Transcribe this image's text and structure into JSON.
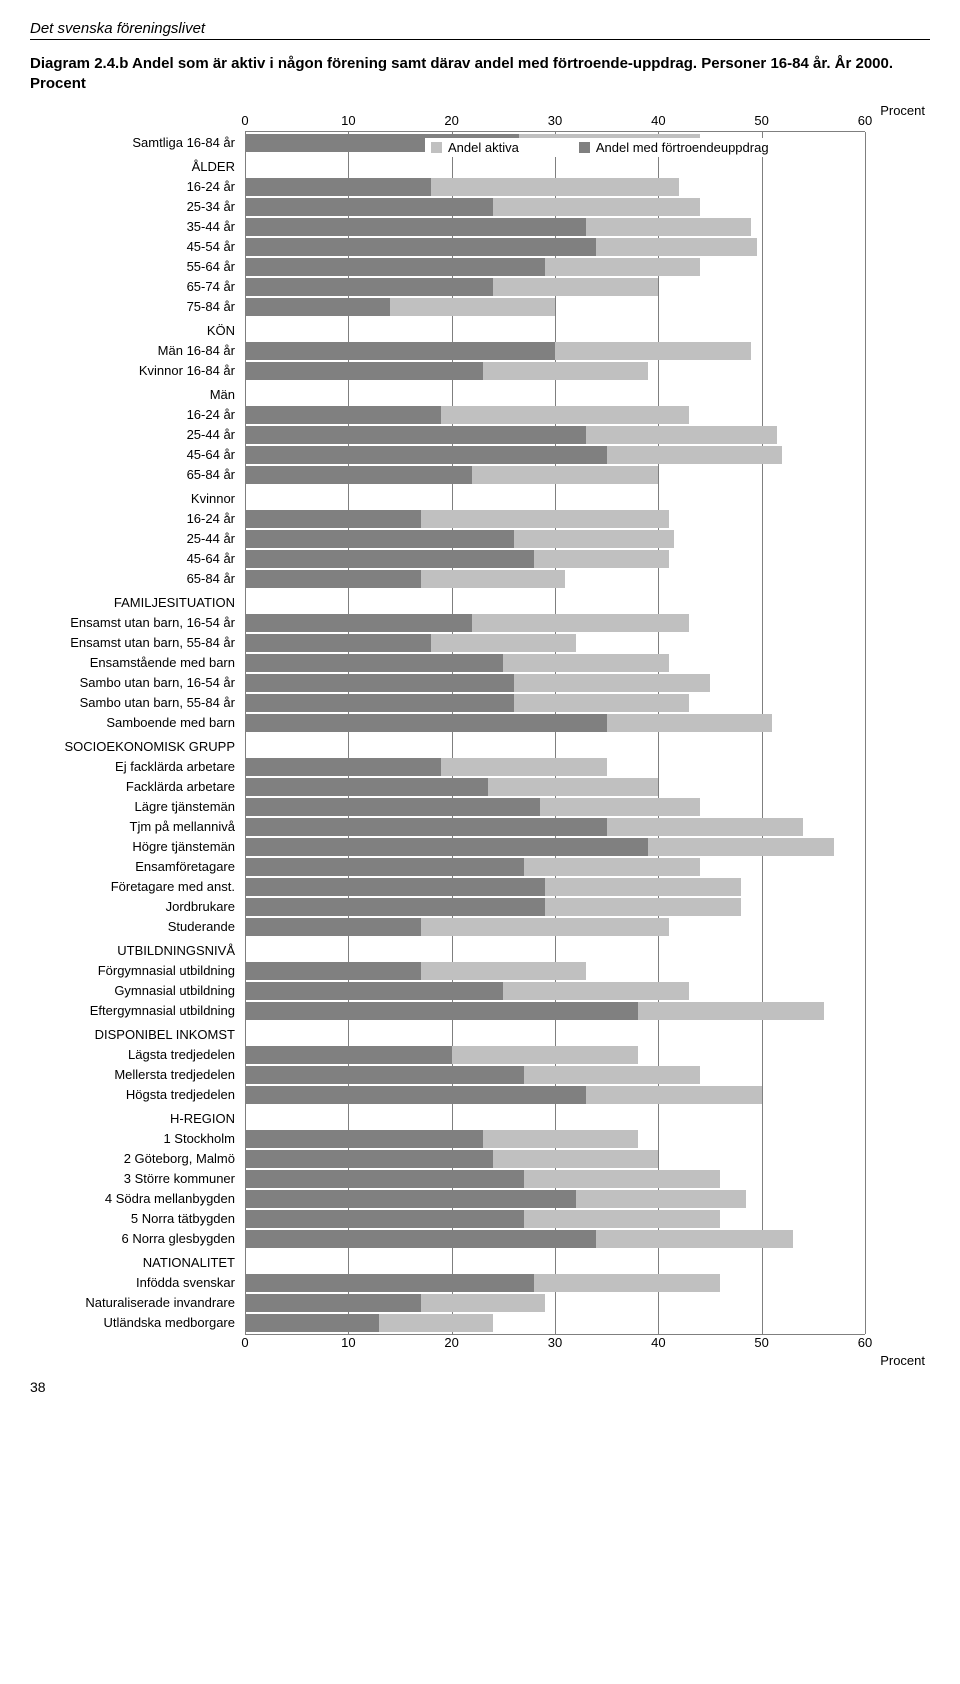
{
  "header": {
    "section": "Det svenska föreningslivet"
  },
  "title": "Diagram 2.4.b Andel som är aktiv i någon förening samt därav andel med förtroende-uppdrag. Personer 16-84 år. År 2000. Procent",
  "page_number": "38",
  "chart": {
    "type": "stacked-horizontal-bar",
    "xmin": 0,
    "xmax": 60,
    "xticks": [
      0,
      10,
      20,
      30,
      40,
      50,
      60
    ],
    "unit_top": "Procent",
    "unit_bottom": "Procent",
    "colors": {
      "aktiva": "#c0c0c0",
      "fortroende": "#808080",
      "grid": "#7f7f7f"
    },
    "legend": [
      {
        "label": "Andel aktiva",
        "color": "#c0c0c0"
      },
      {
        "label": "Andel med förtroendeuppdrag",
        "color": "#808080"
      }
    ],
    "rows": [
      {
        "type": "data",
        "label": "Samtliga 16-84 år",
        "fortroende": 26.5,
        "aktiva": 44
      },
      {
        "type": "heading",
        "label": "ÅLDER"
      },
      {
        "type": "data",
        "label": "16-24 år",
        "fortroende": 18,
        "aktiva": 42
      },
      {
        "type": "data",
        "label": "25-34 år",
        "fortroende": 24,
        "aktiva": 44
      },
      {
        "type": "data",
        "label": "35-44 år",
        "fortroende": 33,
        "aktiva": 49
      },
      {
        "type": "data",
        "label": "45-54 år",
        "fortroende": 34,
        "aktiva": 49.5
      },
      {
        "type": "data",
        "label": "55-64 år",
        "fortroende": 29,
        "aktiva": 44
      },
      {
        "type": "data",
        "label": "65-74 år",
        "fortroende": 24,
        "aktiva": 40
      },
      {
        "type": "data",
        "label": "75-84 år",
        "fortroende": 14,
        "aktiva": 30
      },
      {
        "type": "heading",
        "label": "KÖN"
      },
      {
        "type": "data",
        "label": "Män 16-84 år",
        "fortroende": 30,
        "aktiva": 49
      },
      {
        "type": "data",
        "label": "Kvinnor 16-84 år",
        "fortroende": 23,
        "aktiva": 39
      },
      {
        "type": "heading",
        "label": "Män"
      },
      {
        "type": "data",
        "label": "16-24 år",
        "fortroende": 19,
        "aktiva": 43
      },
      {
        "type": "data",
        "label": "25-44 år",
        "fortroende": 33,
        "aktiva": 51.5
      },
      {
        "type": "data",
        "label": "45-64 år",
        "fortroende": 35,
        "aktiva": 52
      },
      {
        "type": "data",
        "label": "65-84 år",
        "fortroende": 22,
        "aktiva": 40
      },
      {
        "type": "heading",
        "label": "Kvinnor"
      },
      {
        "type": "data",
        "label": "16-24 år",
        "fortroende": 17,
        "aktiva": 41
      },
      {
        "type": "data",
        "label": "25-44 år",
        "fortroende": 26,
        "aktiva": 41.5
      },
      {
        "type": "data",
        "label": "45-64 år",
        "fortroende": 28,
        "aktiva": 41
      },
      {
        "type": "data",
        "label": "65-84 år",
        "fortroende": 17,
        "aktiva": 31
      },
      {
        "type": "heading",
        "label": "FAMILJESITUATION"
      },
      {
        "type": "data",
        "label": "Ensamst utan barn, 16-54 år",
        "fortroende": 22,
        "aktiva": 43
      },
      {
        "type": "data",
        "label": "Ensamst utan barn, 55-84 år",
        "fortroende": 18,
        "aktiva": 32
      },
      {
        "type": "data",
        "label": "Ensamstående med barn",
        "fortroende": 25,
        "aktiva": 41
      },
      {
        "type": "data",
        "label": "Sambo utan barn, 16-54 år",
        "fortroende": 26,
        "aktiva": 45
      },
      {
        "type": "data",
        "label": "Sambo utan barn, 55-84 år",
        "fortroende": 26,
        "aktiva": 43
      },
      {
        "type": "data",
        "label": "Samboende med barn",
        "fortroende": 35,
        "aktiva": 51
      },
      {
        "type": "heading",
        "label": "SOCIOEKONOMISK GRUPP"
      },
      {
        "type": "data",
        "label": "Ej facklärda arbetare",
        "fortroende": 19,
        "aktiva": 35
      },
      {
        "type": "data",
        "label": "Facklärda arbetare",
        "fortroende": 23.5,
        "aktiva": 40
      },
      {
        "type": "data",
        "label": "Lägre tjänstemän",
        "fortroende": 28.5,
        "aktiva": 44
      },
      {
        "type": "data",
        "label": "Tjm på mellannivå",
        "fortroende": 35,
        "aktiva": 54
      },
      {
        "type": "data",
        "label": "Högre tjänstemän",
        "fortroende": 39,
        "aktiva": 57
      },
      {
        "type": "data",
        "label": "Ensamföretagare",
        "fortroende": 27,
        "aktiva": 44
      },
      {
        "type": "data",
        "label": "Företagare med anst.",
        "fortroende": 29,
        "aktiva": 48
      },
      {
        "type": "data",
        "label": "Jordbrukare",
        "fortroende": 29,
        "aktiva": 48
      },
      {
        "type": "data",
        "label": "Studerande",
        "fortroende": 17,
        "aktiva": 41
      },
      {
        "type": "heading",
        "label": "UTBILDNINGSNIVÅ"
      },
      {
        "type": "data",
        "label": "Förgymnasial utbildning",
        "fortroende": 17,
        "aktiva": 33
      },
      {
        "type": "data",
        "label": "Gymnasial utbildning",
        "fortroende": 25,
        "aktiva": 43
      },
      {
        "type": "data",
        "label": "Eftergymnasial utbildning",
        "fortroende": 38,
        "aktiva": 56
      },
      {
        "type": "heading",
        "label": "DISPONIBEL INKOMST"
      },
      {
        "type": "data",
        "label": "Lägsta tredjedelen",
        "fortroende": 20,
        "aktiva": 38
      },
      {
        "type": "data",
        "label": "Mellersta tredjedelen",
        "fortroende": 27,
        "aktiva": 44
      },
      {
        "type": "data",
        "label": "Högsta tredjedelen",
        "fortroende": 33,
        "aktiva": 50
      },
      {
        "type": "heading",
        "label": "H-REGION"
      },
      {
        "type": "data",
        "label": "1 Stockholm",
        "fortroende": 23,
        "aktiva": 38
      },
      {
        "type": "data",
        "label": "2 Göteborg, Malmö",
        "fortroende": 24,
        "aktiva": 40
      },
      {
        "type": "data",
        "label": "3 Större kommuner",
        "fortroende": 27,
        "aktiva": 46
      },
      {
        "type": "data",
        "label": "4 Södra mellanbygden",
        "fortroende": 32,
        "aktiva": 48.5
      },
      {
        "type": "data",
        "label": "5 Norra tätbygden",
        "fortroende": 27,
        "aktiva": 46
      },
      {
        "type": "data",
        "label": "6 Norra glesbygden",
        "fortroende": 34,
        "aktiva": 53
      },
      {
        "type": "heading",
        "label": "NATIONALITET"
      },
      {
        "type": "data",
        "label": "Infödda svenskar",
        "fortroende": 28,
        "aktiva": 46
      },
      {
        "type": "data",
        "label": "Naturaliserade invandrare",
        "fortroende": 17,
        "aktiva": 29
      },
      {
        "type": "data",
        "label": "Utländska medborgare",
        "fortroende": 13,
        "aktiva": 24
      }
    ]
  }
}
